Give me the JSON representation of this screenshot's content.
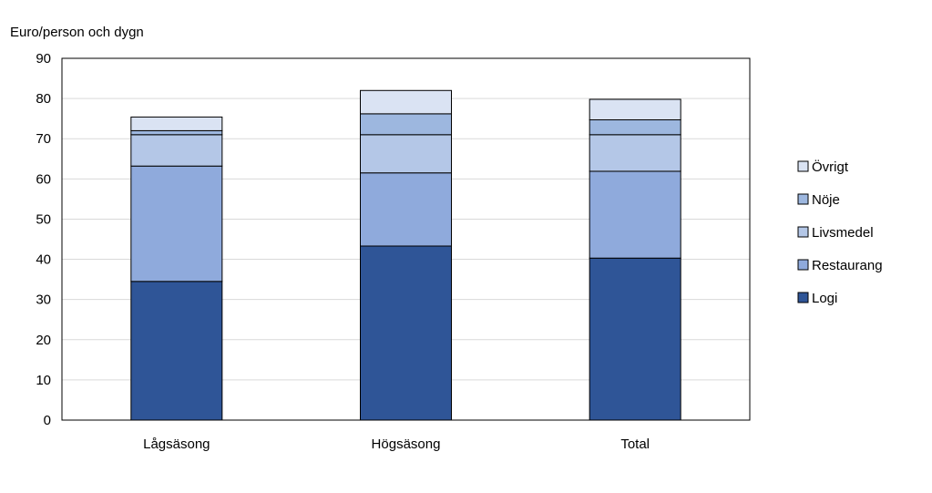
{
  "chart_data": {
    "type": "bar",
    "stacked": true,
    "ylabel": "Euro/person och dygn",
    "xlabel": "",
    "ylim": [
      0,
      90
    ],
    "yticks": [
      0,
      10,
      20,
      30,
      40,
      50,
      60,
      70,
      80,
      90
    ],
    "grid": true,
    "legend_position": "right",
    "categories": [
      "Lågsäsong",
      "Högsäsong",
      "Total"
    ],
    "series": [
      {
        "name": "Logi",
        "color": "#2F5597",
        "values": [
          34.5,
          43.3,
          40.3
        ]
      },
      {
        "name": "Restaurang",
        "color": "#8FAADC",
        "values": [
          28.7,
          18.2,
          21.6
        ]
      },
      {
        "name": "Livsmedel",
        "color": "#B4C7E7",
        "values": [
          7.8,
          9.5,
          9.1
        ]
      },
      {
        "name": "Nöje",
        "color": "#9DB7DF",
        "values": [
          1.0,
          5.2,
          3.7
        ]
      },
      {
        "name": "Övrigt",
        "color": "#DAE3F3",
        "values": [
          3.4,
          5.8,
          5.1
        ]
      }
    ]
  }
}
